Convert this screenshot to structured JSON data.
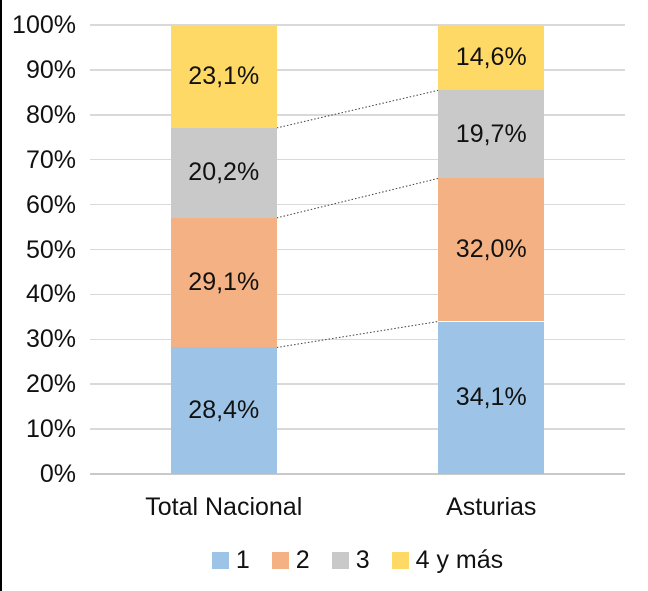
{
  "chart_data": {
    "type": "bar",
    "subtype": "percent-stacked-column",
    "title": "",
    "categories": [
      "Total Nacional",
      "Asturias"
    ],
    "series": [
      {
        "name": "1",
        "color": "#9DC3E6",
        "values": [
          28.4,
          34.1
        ],
        "labels": [
          "28,4%",
          "34,1%"
        ]
      },
      {
        "name": "2",
        "color": "#F4B183",
        "values": [
          29.1,
          32.0
        ],
        "labels": [
          "29,1%",
          "32,0%"
        ]
      },
      {
        "name": "3",
        "color": "#C9C9C9",
        "values": [
          20.2,
          19.7
        ],
        "labels": [
          "20,2%",
          "19,7%"
        ]
      },
      {
        "name": "4 y más",
        "color": "#FFD966",
        "values": [
          23.1,
          14.6
        ],
        "labels": [
          "23,1%",
          "14,6%"
        ]
      }
    ],
    "y_axis": {
      "min": 0,
      "max": 100,
      "step": 10,
      "ticks": [
        "0%",
        "10%",
        "20%",
        "30%",
        "40%",
        "50%",
        "60%",
        "70%",
        "80%",
        "90%",
        "100%"
      ]
    },
    "legend": {
      "position": "bottom",
      "entries": [
        "1",
        "2",
        "3",
        "4 y más"
      ]
    },
    "grid": "horizontal",
    "series_connector_lines": true,
    "colors": {
      "gridline": "#D9D9D9",
      "connector": "#404040",
      "text": "#111111",
      "background": "#FFFFFF",
      "left_edge_border": "#000000"
    }
  }
}
